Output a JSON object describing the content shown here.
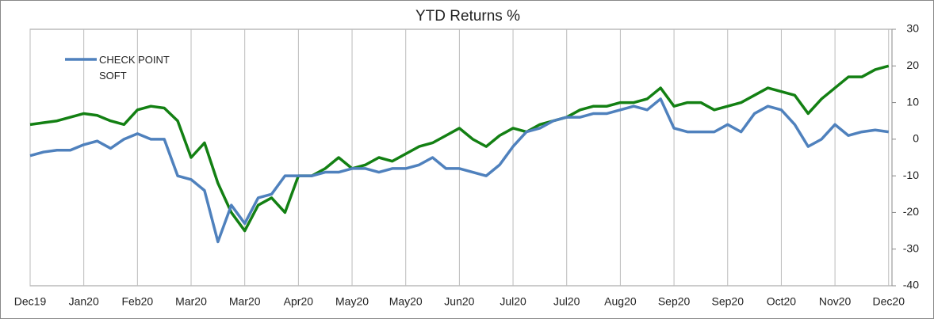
{
  "chart_data": {
    "type": "line",
    "title": "YTD Returns %",
    "x": [
      0,
      4,
      8,
      12,
      16,
      20,
      24,
      28,
      32,
      36,
      40,
      44,
      48,
      52,
      56,
      60,
      64,
      68,
      72,
      76,
      80,
      84,
      88,
      92,
      96,
      100,
      104,
      108,
      112,
      116,
      120,
      124,
      128,
      132,
      136,
      140,
      144,
      148,
      152,
      156,
      160,
      164,
      168,
      172,
      176,
      180,
      184,
      188,
      192,
      196,
      200,
      204,
      208,
      212,
      216,
      220,
      224,
      228,
      232,
      236,
      240,
      244,
      248,
      252,
      256
    ],
    "series": [
      {
        "name": "CHECK POINT SOFT",
        "color": "#4f81bd",
        "values": [
          -4.5,
          -3.5,
          -3,
          -3,
          -1.5,
          -0.5,
          -2.5,
          0,
          1.5,
          0,
          0,
          -10,
          -11,
          -14,
          -28,
          -18,
          -23,
          -16,
          -15,
          -10,
          -10,
          -10,
          -9,
          -9,
          -8,
          -8,
          -9,
          -8,
          -8,
          -7,
          -5,
          -8,
          -8,
          -9,
          -10,
          -7,
          -2,
          2,
          3,
          5,
          6,
          6,
          7,
          7,
          8,
          9,
          8,
          11,
          3,
          2,
          2,
          2,
          4,
          2,
          7,
          9,
          8,
          4,
          -2,
          0,
          4,
          1,
          2,
          2.5,
          2
        ]
      },
      {
        "color": "#138013",
        "values": [
          4,
          4.5,
          5,
          6,
          7,
          6.5,
          5,
          4,
          8,
          9,
          8.5,
          5,
          -5,
          -1,
          -12,
          -20,
          -25,
          -18,
          -16,
          -20,
          -10,
          -10,
          -8,
          -5,
          -8,
          -7,
          -5,
          -6,
          -4,
          -2,
          -1,
          1,
          3,
          0,
          -2,
          1,
          3,
          2,
          4,
          5,
          6,
          8,
          9,
          9,
          10,
          10,
          11,
          14,
          9,
          10,
          10,
          8,
          9,
          10,
          12,
          14,
          13,
          12,
          7,
          11,
          14,
          17,
          17,
          19,
          20
        ]
      }
    ],
    "xlim": [
      0,
      257
    ],
    "xticks": [
      {
        "value": 0,
        "label": "Dec19"
      },
      {
        "value": 16,
        "label": "Jan20"
      },
      {
        "value": 32,
        "label": "Feb20"
      },
      {
        "value": 48,
        "label": "Mar20"
      },
      {
        "value": 64,
        "label": "Mar20"
      },
      {
        "value": 80,
        "label": "Apr20"
      },
      {
        "value": 96,
        "label": "May20"
      },
      {
        "value": 112,
        "label": "May20"
      },
      {
        "value": 128,
        "label": "Jun20"
      },
      {
        "value": 144,
        "label": "Jul20"
      },
      {
        "value": 160,
        "label": "Jul20"
      },
      {
        "value": 176,
        "label": "Aug20"
      },
      {
        "value": 192,
        "label": "Sep20"
      },
      {
        "value": 208,
        "label": "Sep20"
      },
      {
        "value": 224,
        "label": "Oct20"
      },
      {
        "value": 240,
        "label": "Nov20"
      },
      {
        "value": 256,
        "label": "Dec20"
      }
    ],
    "ylim": [
      -40,
      30
    ],
    "yticks": [
      30,
      20,
      10,
      0,
      -10,
      -20,
      -30,
      -40
    ],
    "y_axis_side": "right",
    "grid": "x"
  }
}
